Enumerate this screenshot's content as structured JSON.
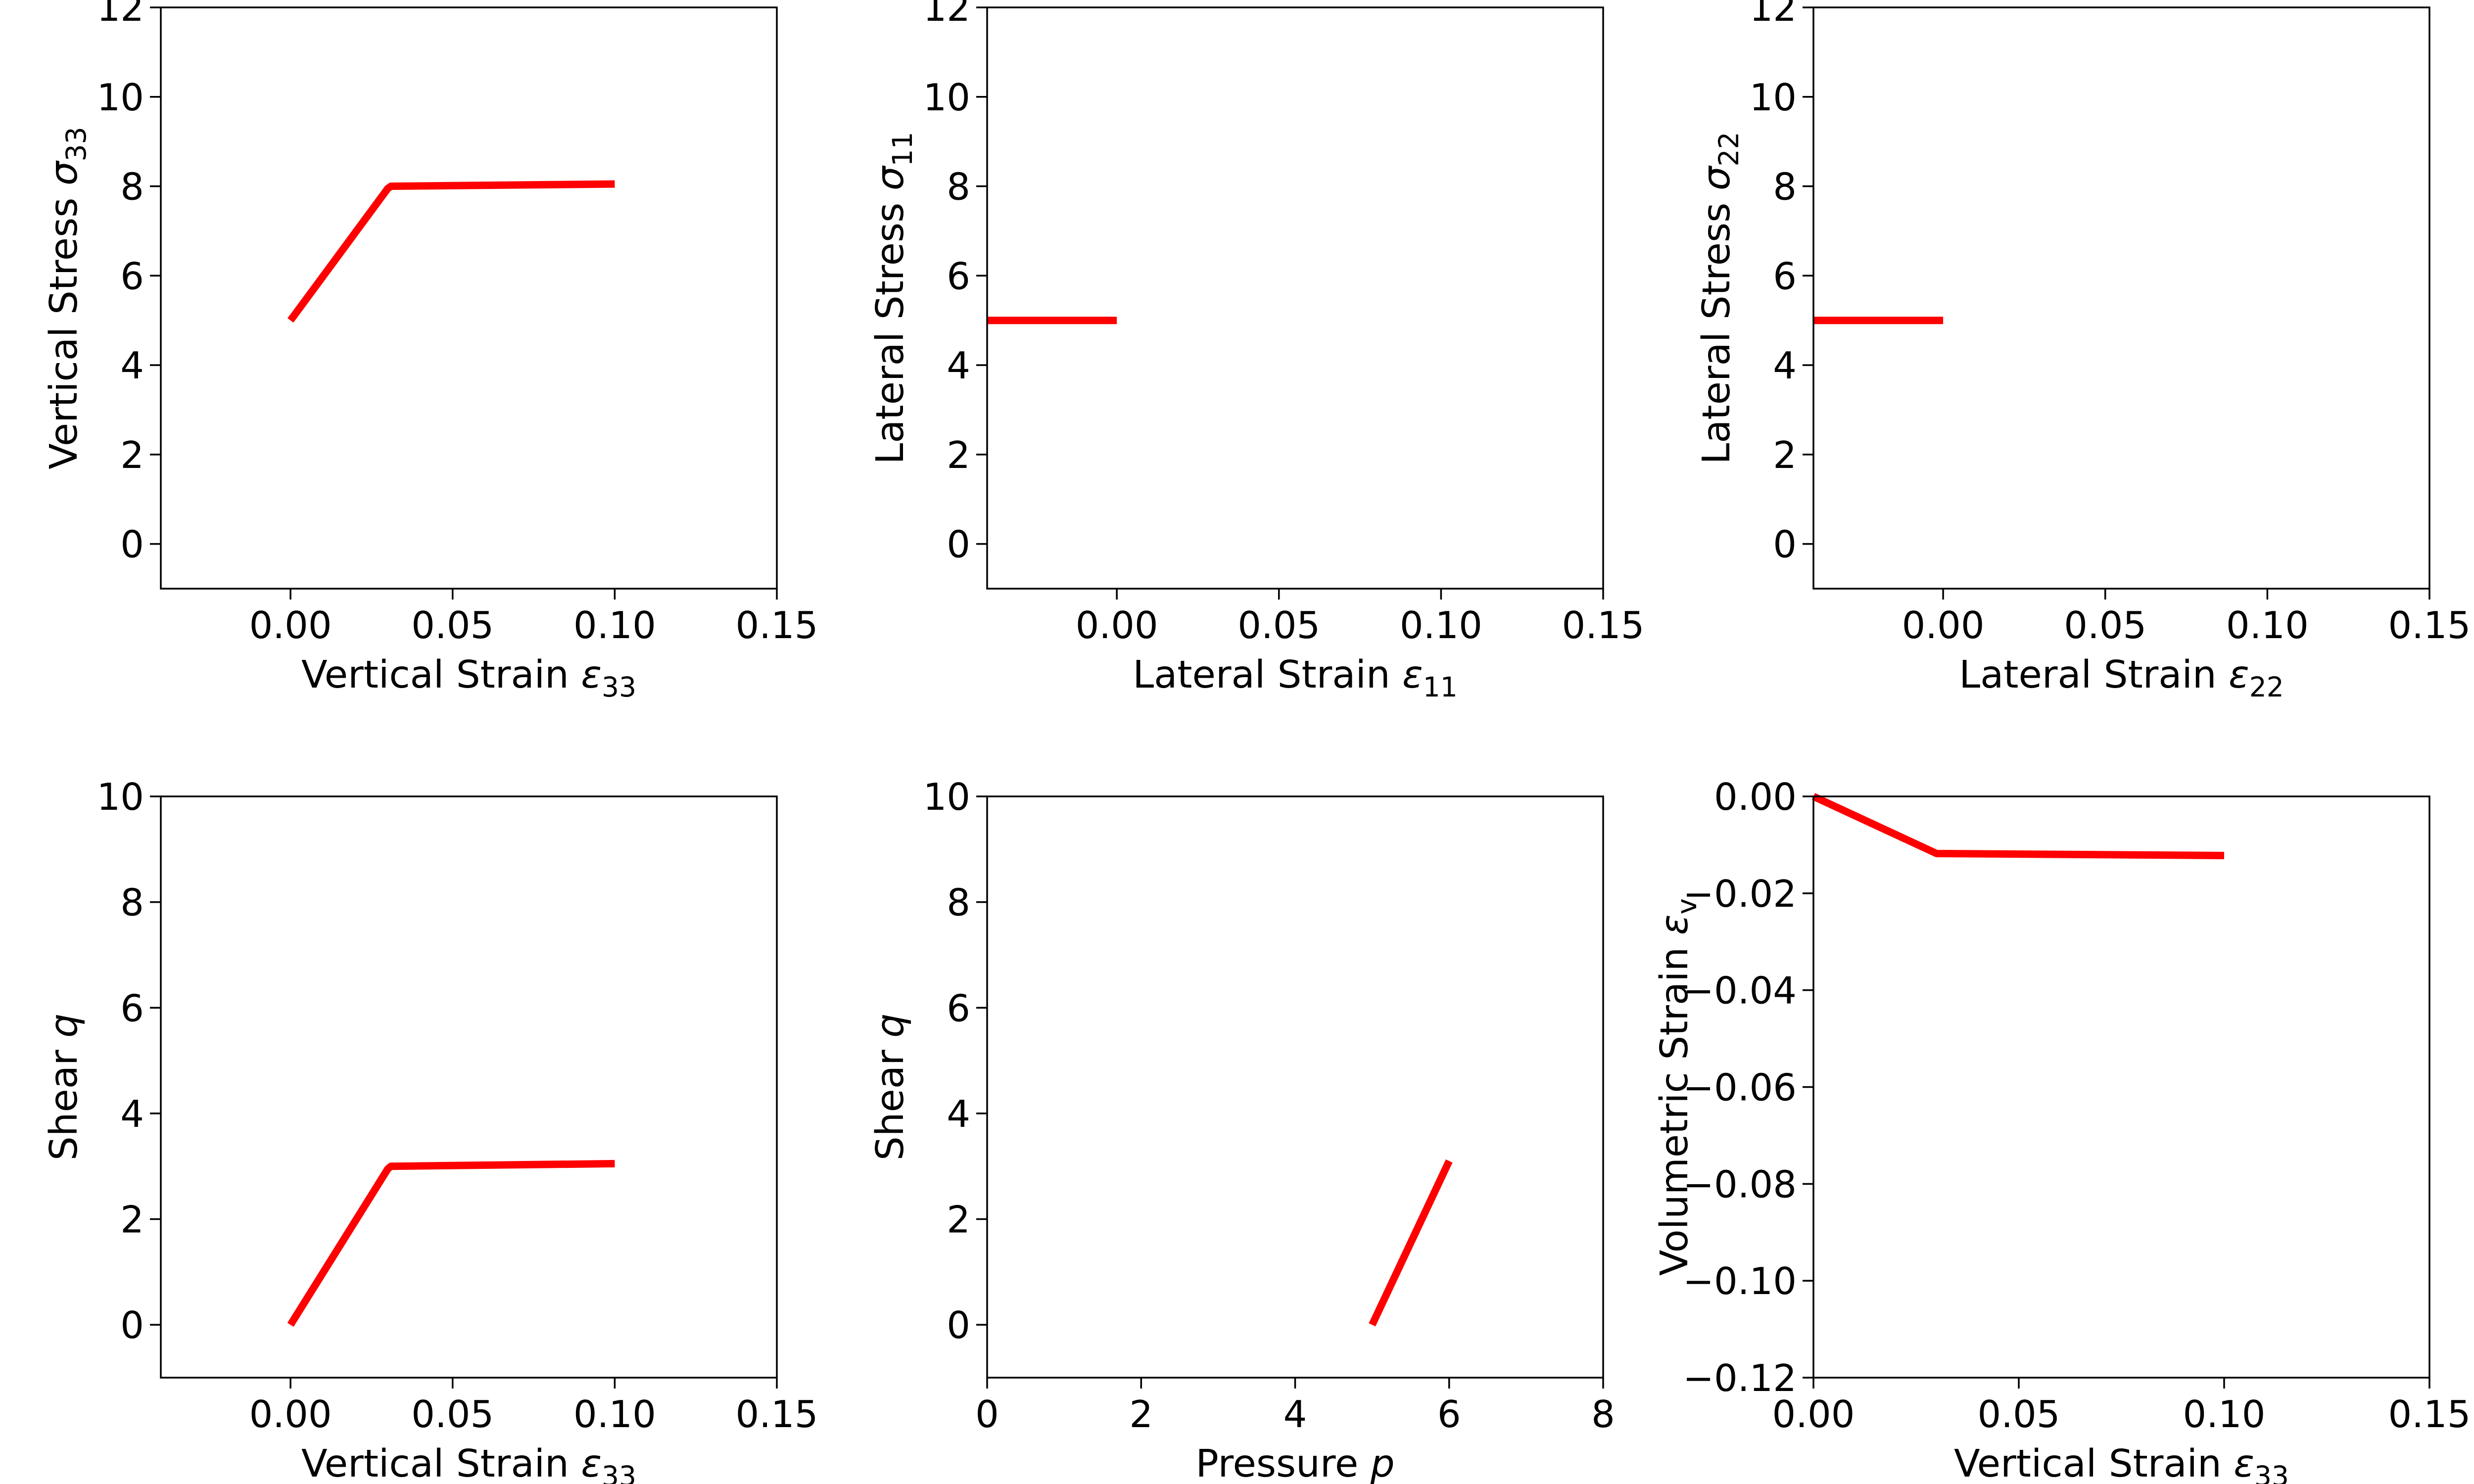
{
  "chart_data": [
    {
      "type": "line",
      "xlabel": "Vertical Strain",
      "xlabel_sym": "ε",
      "xlabel_sub": "33",
      "ylabel": "Vertical Stress",
      "ylabel_sym": "σ",
      "ylabel_sub": "33",
      "xlim": [
        -0.04,
        0.15
      ],
      "ylim": [
        -1,
        12
      ],
      "xticks": [
        0.0,
        0.05,
        0.1,
        0.15
      ],
      "xtick_labels": [
        "0.00",
        "0.05",
        "0.10",
        "0.15"
      ],
      "yticks": [
        0,
        2,
        4,
        6,
        8,
        10,
        12
      ],
      "ytick_labels": [
        "0",
        "2",
        "4",
        "6",
        "8",
        "10",
        "12"
      ],
      "grid": false,
      "series": [
        {
          "color": "#ff0000",
          "x": [
            0.0,
            0.03,
            0.031,
            0.1
          ],
          "y": [
            5.0,
            7.95,
            8.0,
            8.05
          ]
        }
      ]
    },
    {
      "type": "line",
      "xlabel": "Lateral Strain",
      "xlabel_sym": "ε",
      "xlabel_sub": "11",
      "ylabel": "Lateral Stress",
      "ylabel_sym": "σ",
      "ylabel_sub": "11",
      "xlim": [
        -0.04,
        0.15
      ],
      "ylim": [
        -1,
        12
      ],
      "xticks": [
        0.0,
        0.05,
        0.1,
        0.15
      ],
      "xtick_labels": [
        "0.00",
        "0.05",
        "0.10",
        "0.15"
      ],
      "yticks": [
        0,
        2,
        4,
        6,
        8,
        10,
        12
      ],
      "ytick_labels": [
        "0",
        "2",
        "4",
        "6",
        "8",
        "10",
        "12"
      ],
      "grid": false,
      "series": [
        {
          "color": "#ff0000",
          "x": [
            -0.04,
            0.0
          ],
          "y": [
            5.0,
            5.0
          ]
        }
      ]
    },
    {
      "type": "line",
      "xlabel": "Lateral Strain",
      "xlabel_sym": "ε",
      "xlabel_sub": "22",
      "ylabel": "Lateral Stress",
      "ylabel_sym": "σ",
      "ylabel_sub": "22",
      "xlim": [
        -0.04,
        0.15
      ],
      "ylim": [
        -1,
        12
      ],
      "xticks": [
        0.0,
        0.05,
        0.1,
        0.15
      ],
      "xtick_labels": [
        "0.00",
        "0.05",
        "0.10",
        "0.15"
      ],
      "yticks": [
        0,
        2,
        4,
        6,
        8,
        10,
        12
      ],
      "ytick_labels": [
        "0",
        "2",
        "4",
        "6",
        "8",
        "10",
        "12"
      ],
      "grid": false,
      "series": [
        {
          "color": "#ff0000",
          "x": [
            -0.04,
            0.0
          ],
          "y": [
            5.0,
            5.0
          ]
        }
      ]
    },
    {
      "type": "line",
      "xlabel": "Vertical Strain",
      "xlabel_sym": "ε",
      "xlabel_sub": "33",
      "ylabel": "Shear",
      "ylabel_sym": "q",
      "ylabel_sub": "",
      "xlim": [
        -0.04,
        0.15
      ],
      "ylim": [
        -1,
        10
      ],
      "xticks": [
        0.0,
        0.05,
        0.1,
        0.15
      ],
      "xtick_labels": [
        "0.00",
        "0.05",
        "0.10",
        "0.15"
      ],
      "yticks": [
        0,
        2,
        4,
        6,
        8,
        10
      ],
      "ytick_labels": [
        "0",
        "2",
        "4",
        "6",
        "8",
        "10"
      ],
      "grid": false,
      "series": [
        {
          "color": "#ff0000",
          "x": [
            0.0,
            0.03,
            0.031,
            0.1
          ],
          "y": [
            0.0,
            2.95,
            3.0,
            3.05
          ]
        }
      ]
    },
    {
      "type": "line",
      "xlabel": "Pressure",
      "xlabel_sym": "p",
      "xlabel_sub": "",
      "ylabel": "Shear",
      "ylabel_sym": "q",
      "ylabel_sub": "",
      "xlim": [
        0,
        8
      ],
      "ylim": [
        -1,
        10
      ],
      "xticks": [
        0,
        2,
        4,
        6,
        8
      ],
      "xtick_labels": [
        "0",
        "2",
        "4",
        "6",
        "8"
      ],
      "yticks": [
        0,
        2,
        4,
        6,
        8,
        10
      ],
      "ytick_labels": [
        "0",
        "2",
        "4",
        "6",
        "8",
        "10"
      ],
      "grid": false,
      "series": [
        {
          "color": "#ff0000",
          "x": [
            5.0,
            6.0
          ],
          "y": [
            0.0,
            3.1
          ]
        }
      ]
    },
    {
      "type": "line",
      "xlabel": "Vertical Strain",
      "xlabel_sym": "ε",
      "xlabel_sub": "33",
      "ylabel": "Volumetric Strain",
      "ylabel_sym": "ε",
      "ylabel_sub": "v",
      "xlim": [
        0.0,
        0.15
      ],
      "ylim": [
        -0.12,
        0.0
      ],
      "xticks": [
        0.0,
        0.05,
        0.1,
        0.15
      ],
      "xtick_labels": [
        "0.00",
        "0.05",
        "0.10",
        "0.15"
      ],
      "yticks": [
        0.0,
        -0.02,
        -0.04,
        -0.06,
        -0.08,
        -0.1,
        -0.12
      ],
      "ytick_labels": [
        "0.00",
        "−0.02",
        "−0.04",
        "−0.06",
        "−0.08",
        "−0.10",
        "−0.12"
      ],
      "grid": false,
      "series": [
        {
          "color": "#ff0000",
          "x": [
            0.0,
            0.03,
            0.1
          ],
          "y": [
            0.0,
            -0.0118,
            -0.0122
          ]
        }
      ]
    }
  ]
}
